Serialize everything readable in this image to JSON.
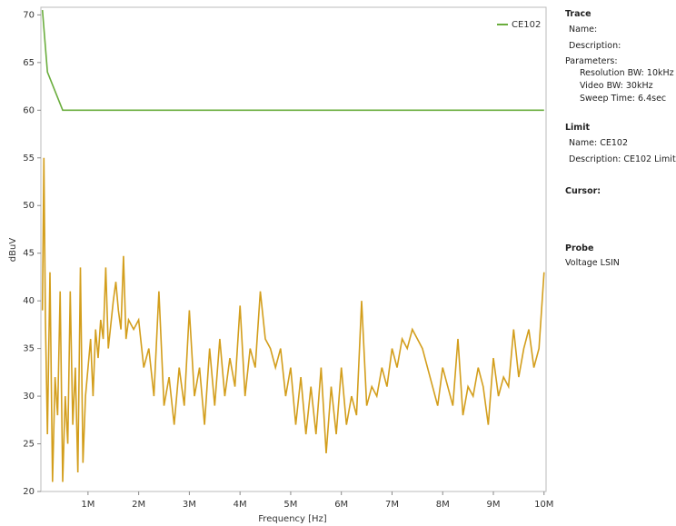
{
  "chart_data": {
    "type": "line",
    "x_label": "Frequency [Hz]",
    "y_label": "dBuV",
    "xlim": [
      70000,
      10040000
    ],
    "ylim": [
      20,
      70.8
    ],
    "xticks": [
      {
        "value": 1000000,
        "label": "1M"
      },
      {
        "value": 2000000,
        "label": "2M"
      },
      {
        "value": 3000000,
        "label": "3M"
      },
      {
        "value": 4000000,
        "label": "4M"
      },
      {
        "value": 5000000,
        "label": "5M"
      },
      {
        "value": 6000000,
        "label": "6M"
      },
      {
        "value": 7000000,
        "label": "7M"
      },
      {
        "value": 8000000,
        "label": "8M"
      },
      {
        "value": 9000000,
        "label": "9M"
      },
      {
        "value": 10000000,
        "label": "10M"
      }
    ],
    "yticks": [
      20,
      25,
      30,
      35,
      40,
      45,
      50,
      55,
      60,
      65,
      70
    ],
    "legend": "top-right",
    "series": [
      {
        "name": "CE102",
        "color": "#6aad3d",
        "x": [
          100000,
          200000,
          500000,
          10000000
        ],
        "values": [
          70.5,
          64,
          60,
          60
        ]
      },
      {
        "color": "#d39e1c",
        "x": [
          100000,
          130000,
          160000,
          200000,
          250000,
          300000,
          350000,
          400000,
          450000,
          500000,
          550000,
          600000,
          650000,
          700000,
          750000,
          800000,
          850000,
          900000,
          950000,
          1000000,
          1050000,
          1100000,
          1150000,
          1200000,
          1250000,
          1300000,
          1350000,
          1400000,
          1500000,
          1550000,
          1600000,
          1650000,
          1700000,
          1750000,
          1800000,
          1900000,
          2000000,
          2100000,
          2200000,
          2300000,
          2400000,
          2500000,
          2600000,
          2700000,
          2800000,
          2900000,
          3000000,
          3100000,
          3200000,
          3300000,
          3400000,
          3500000,
          3600000,
          3700000,
          3800000,
          3900000,
          4000000,
          4100000,
          4200000,
          4300000,
          4400000,
          4500000,
          4600000,
          4700000,
          4800000,
          4900000,
          5000000,
          5100000,
          5200000,
          5300000,
          5400000,
          5500000,
          5600000,
          5700000,
          5800000,
          5900000,
          6000000,
          6100000,
          6200000,
          6300000,
          6400000,
          6500000,
          6600000,
          6700000,
          6800000,
          6900000,
          7000000,
          7100000,
          7200000,
          7300000,
          7400000,
          7500000,
          7600000,
          7700000,
          7800000,
          7900000,
          8000000,
          8100000,
          8200000,
          8300000,
          8400000,
          8500000,
          8600000,
          8700000,
          8800000,
          8900000,
          9000000,
          9100000,
          9200000,
          9300000,
          9400000,
          9500000,
          9600000,
          9700000,
          9800000,
          9900000,
          10000000
        ],
        "values": [
          39,
          55,
          38,
          26,
          43,
          21,
          32,
          28,
          41,
          21,
          30,
          25,
          41,
          27,
          33,
          22,
          43.5,
          23,
          30,
          33,
          36,
          30,
          37,
          34,
          38,
          36,
          43.5,
          35,
          40,
          42,
          39,
          37,
          44.7,
          36,
          38,
          37,
          38,
          33,
          35,
          30,
          41,
          29,
          32,
          27,
          33,
          29,
          39,
          30,
          33,
          27,
          35,
          29,
          36,
          30,
          34,
          31,
          39.5,
          30,
          35,
          33,
          41,
          36,
          35,
          33,
          35,
          30,
          33,
          27,
          32,
          26,
          31,
          26,
          33,
          24,
          31,
          26,
          33,
          27,
          30,
          28,
          40,
          29,
          31,
          30,
          33,
          31,
          35,
          33,
          36,
          35,
          37,
          36,
          35,
          33,
          31,
          29,
          33,
          31,
          29,
          36,
          28,
          31,
          30,
          33,
          31,
          27,
          34,
          30,
          32,
          31,
          37,
          32,
          35,
          37,
          33,
          35,
          43
        ]
      }
    ]
  },
  "panel": {
    "trace": {
      "heading": "Trace",
      "name": "Name:",
      "description": "Description:",
      "parameters": "Parameters:",
      "params": [
        "Resolution BW: 10kHz",
        "Video BW: 30kHz",
        "Sweep Time: 6.4sec"
      ]
    },
    "limit": {
      "heading": "Limit",
      "name": "Name: CE102",
      "description": "Description: CE102 Limit"
    },
    "cursor": {
      "heading": "Cursor:"
    },
    "probe": {
      "heading": "Probe",
      "value": "Voltage LSIN"
    }
  }
}
